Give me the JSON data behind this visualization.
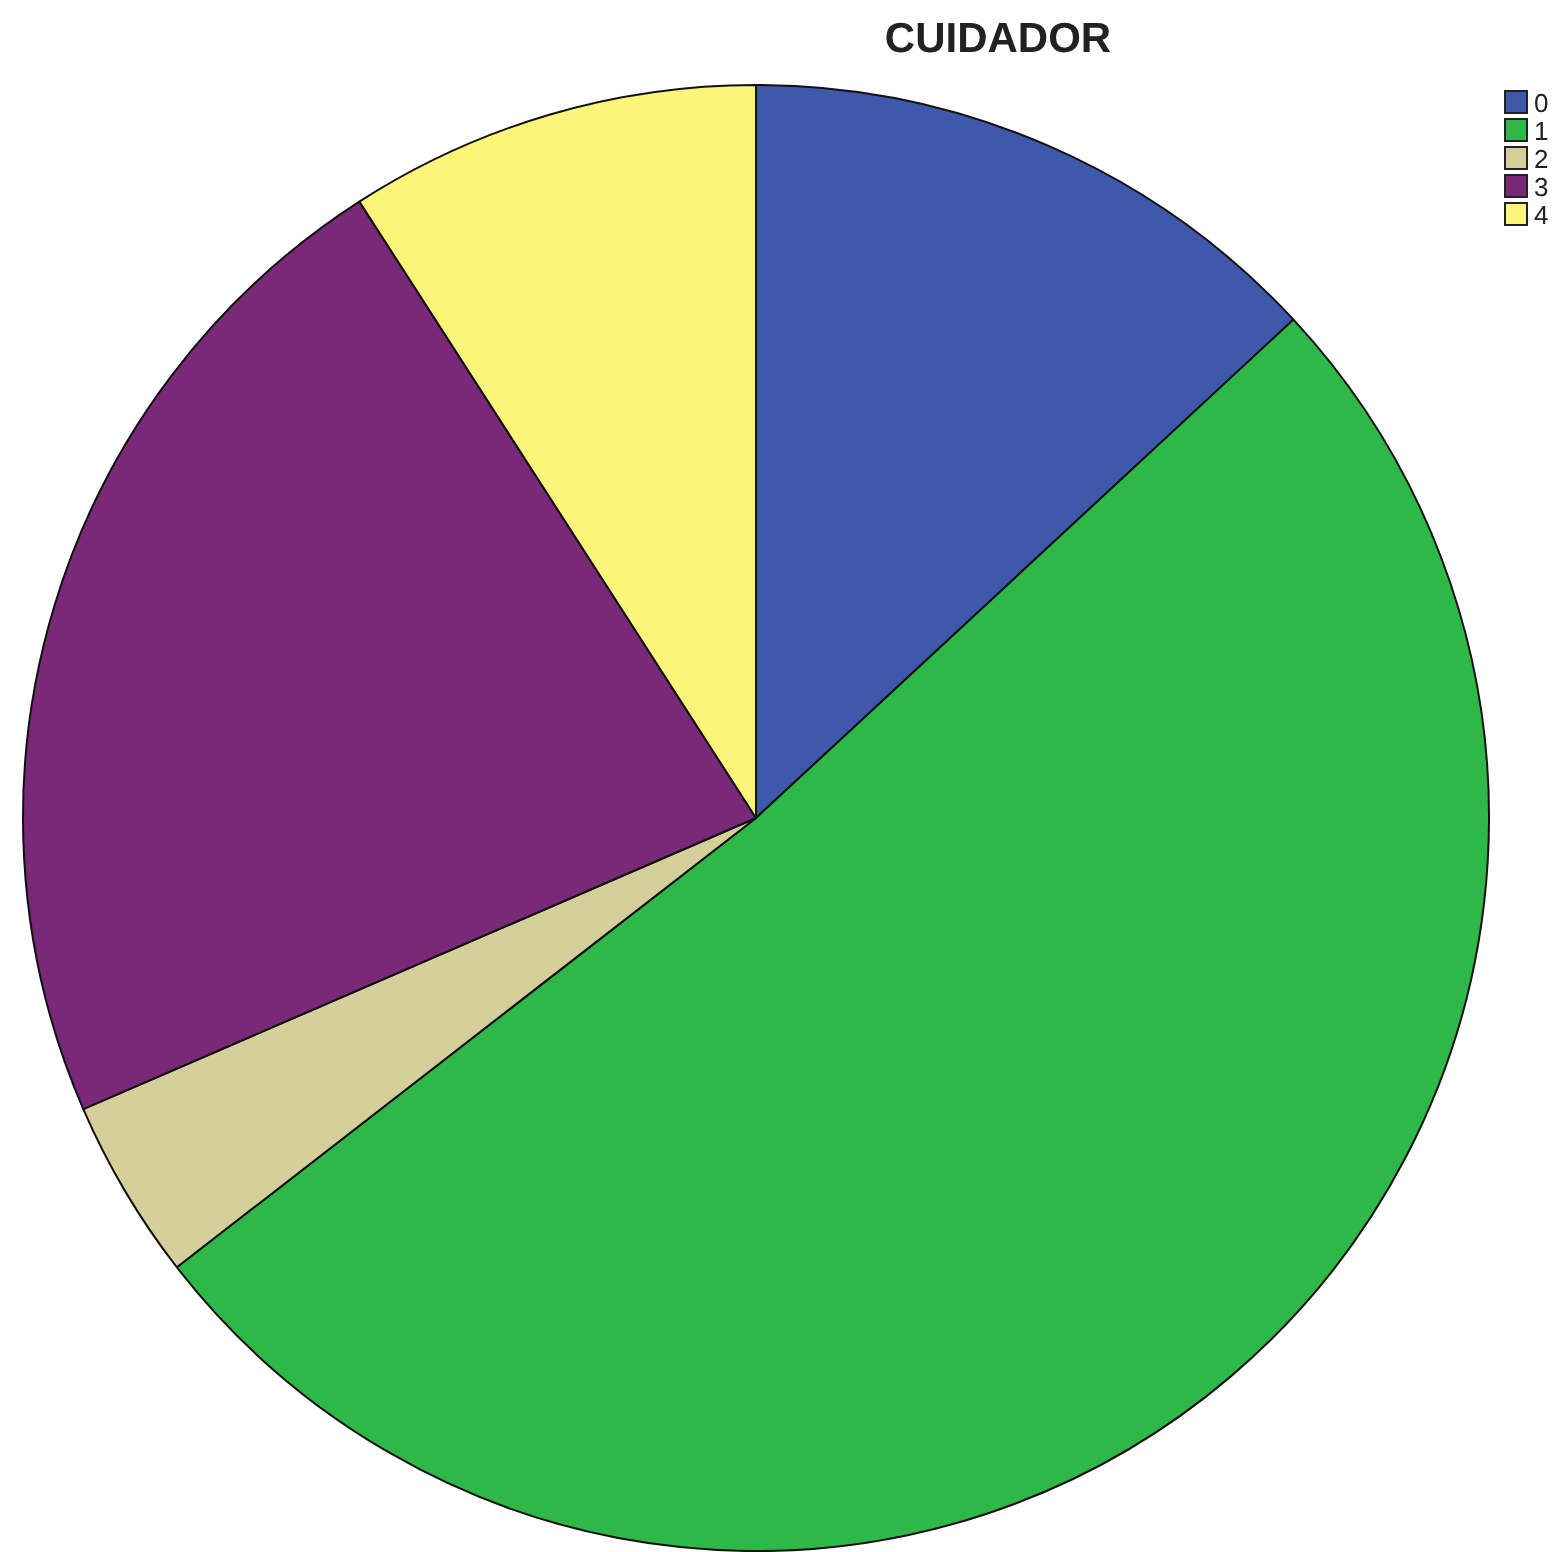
{
  "chart_data": {
    "type": "pie",
    "title": "CUIDADOR",
    "categories": [
      "0",
      "1",
      "2",
      "3",
      "4"
    ],
    "values": [
      13.1,
      51.4,
      4.0,
      22.4,
      9.1
    ],
    "colors": [
      "#3e58ac",
      "#2eb848",
      "#d4cf9b",
      "#7a2878",
      "#fbf67a"
    ],
    "legend": "top right"
  }
}
